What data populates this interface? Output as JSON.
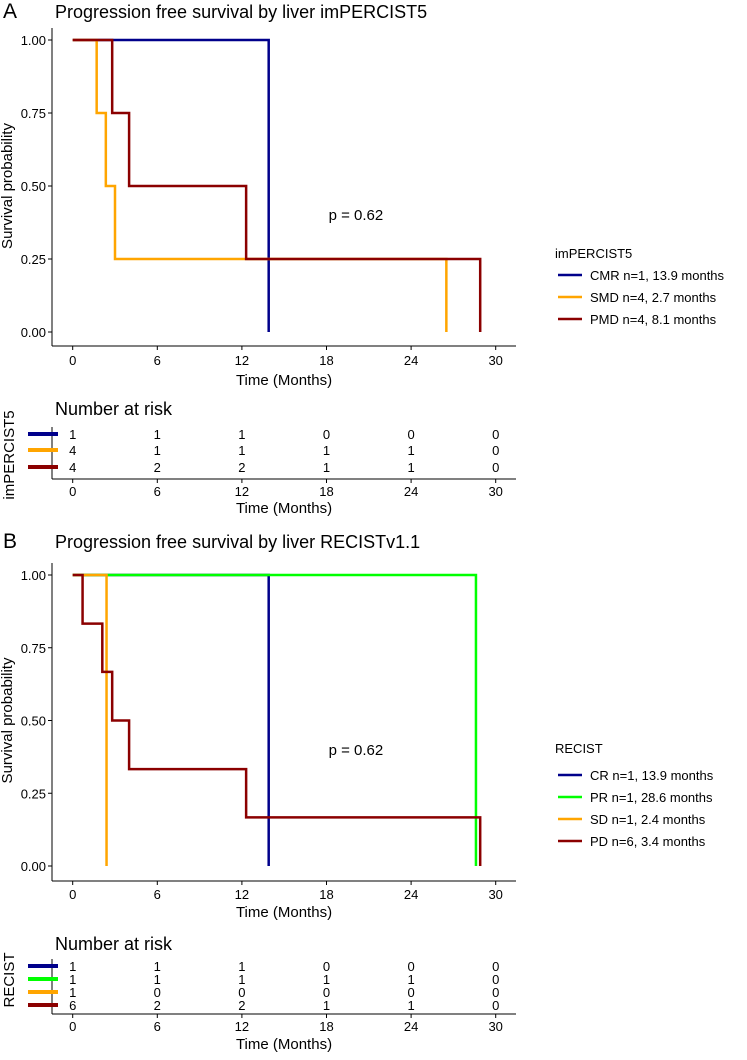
{
  "chart_data": [
    {
      "type": "line",
      "subtype": "kaplan-meier",
      "panel_label": "A",
      "title": "Progression free survival by liver imPERCIST5",
      "xlabel": "Time (Months)",
      "ylabel": "Survival probability",
      "xlim": [
        0,
        30
      ],
      "ylim": [
        0,
        1
      ],
      "xticks": [
        "0",
        "6",
        "12",
        "18",
        "24",
        "30"
      ],
      "yticks": [
        "0.00",
        "0.25",
        "0.50",
        "0.75",
        "1.00"
      ],
      "pvalue": "p = 0.62",
      "legend_title": "imPERCIST5",
      "legend_position": "right",
      "series": [
        {
          "name": "CMR n=1, 13.9 months",
          "color": "#00008B",
          "times": [
            0,
            13.9
          ],
          "surv": [
            1.0,
            0.0
          ]
        },
        {
          "name": "SMD n=4, 2.7 months",
          "color": "#FFA500",
          "times": [
            0,
            1.7,
            2.35,
            3.0,
            26.5
          ],
          "surv": [
            1.0,
            0.75,
            0.5,
            0.25,
            0.0
          ]
        },
        {
          "name": "PMD n=4, 8.1 months",
          "color": "#8B0000",
          "times": [
            0,
            2.8,
            4.0,
            12.3,
            28.9
          ],
          "surv": [
            1.0,
            0.75,
            0.5,
            0.25,
            0.0
          ]
        }
      ],
      "risk_table": {
        "title": "Number at risk",
        "ylabel": "imPERCIST5",
        "xlabel": "Time (Months)",
        "times": [
          0,
          6,
          12,
          18,
          24,
          30
        ],
        "rows": [
          [
            "1",
            "1",
            "1",
            "0",
            "0",
            "0"
          ],
          [
            "4",
            "1",
            "1",
            "1",
            "1",
            "0"
          ],
          [
            "4",
            "2",
            "2",
            "1",
            "1",
            "0"
          ]
        ]
      }
    },
    {
      "type": "line",
      "subtype": "kaplan-meier",
      "panel_label": "B",
      "title": "Progression free survival by liver RECISTv1.1",
      "xlabel": "Time (Months)",
      "ylabel": "Survival probability",
      "xlim": [
        0,
        30
      ],
      "ylim": [
        0,
        1
      ],
      "xticks": [
        "0",
        "6",
        "12",
        "18",
        "24",
        "30"
      ],
      "yticks": [
        "0.00",
        "0.25",
        "0.50",
        "0.75",
        "1.00"
      ],
      "pvalue": "p = 0.62",
      "legend_title": "RECIST",
      "legend_position": "right",
      "series": [
        {
          "name": "CR n=1, 13.9 months",
          "color": "#00008B",
          "times": [
            0,
            13.9
          ],
          "surv": [
            1.0,
            0.0
          ]
        },
        {
          "name": "PR n=1, 28.6 months",
          "color": "#00FF00",
          "times": [
            0,
            28.6
          ],
          "surv": [
            1.0,
            0.0
          ]
        },
        {
          "name": "SD n=1, 2.4 months",
          "color": "#FFA500",
          "times": [
            0,
            2.4
          ],
          "surv": [
            1.0,
            0.0
          ]
        },
        {
          "name": "PD n=6, 3.4 months",
          "color": "#8B0000",
          "times": [
            0,
            0.7,
            2.1,
            2.8,
            4.0,
            12.3,
            28.9
          ],
          "surv": [
            1.0,
            0.833,
            0.667,
            0.5,
            0.333,
            0.167,
            0.0
          ]
        }
      ],
      "risk_table": {
        "title": "Number at risk",
        "ylabel": "RECIST",
        "xlabel": "Time (Months)",
        "times": [
          0,
          6,
          12,
          18,
          24,
          30
        ],
        "rows": [
          [
            "1",
            "1",
            "1",
            "0",
            "0",
            "0"
          ],
          [
            "1",
            "1",
            "1",
            "1",
            "1",
            "0"
          ],
          [
            "1",
            "0",
            "0",
            "0",
            "0",
            "0"
          ],
          [
            "6",
            "2",
            "2",
            "1",
            "1",
            "0"
          ]
        ]
      }
    }
  ]
}
